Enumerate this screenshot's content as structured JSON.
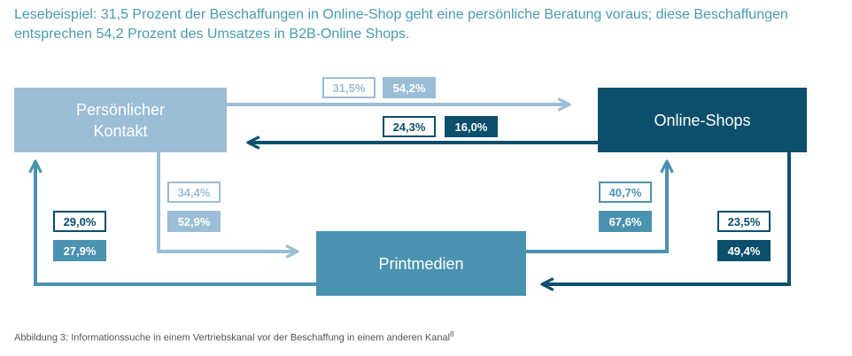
{
  "intro": {
    "line1": "Lesebeispiel: 31,5 Prozent der Beschaffungen in Online-Shop geht eine persönliche Beratung voraus; diese Beschaffungen",
    "line2": "entsprechen 54,2 Prozent des Umsatzes in B2B-Online Shops."
  },
  "nodes": {
    "persoenlich_line1": "Persönlicher",
    "persoenlich_line2": "Kontakt",
    "online": "Online-Shops",
    "print": "Printmedien"
  },
  "flows": {
    "persoenlich_to_online": {
      "share": "31,5%",
      "revenue": "54,2%"
    },
    "online_to_persoenlich": {
      "share": "24,3%",
      "revenue": "16,0%"
    },
    "persoenlich_to_print": {
      "share": "34,4%",
      "revenue": "52,9%"
    },
    "print_to_persoenlich": {
      "share": "29,0%",
      "revenue": "27,9%"
    },
    "print_to_online": {
      "share": "40,7%",
      "revenue": "67,6%"
    },
    "online_to_print": {
      "share": "23,5%",
      "revenue": "49,4%"
    }
  },
  "colors": {
    "persoenlich": "#9bbdd6",
    "online": "#0b4f6c",
    "print": "#4a93b0"
  },
  "caption": {
    "text": "Abbildung 3: Informationssuche in einem Vertriebskanal vor der Beschaffung in einem anderen Kanal",
    "footnote": "8"
  }
}
